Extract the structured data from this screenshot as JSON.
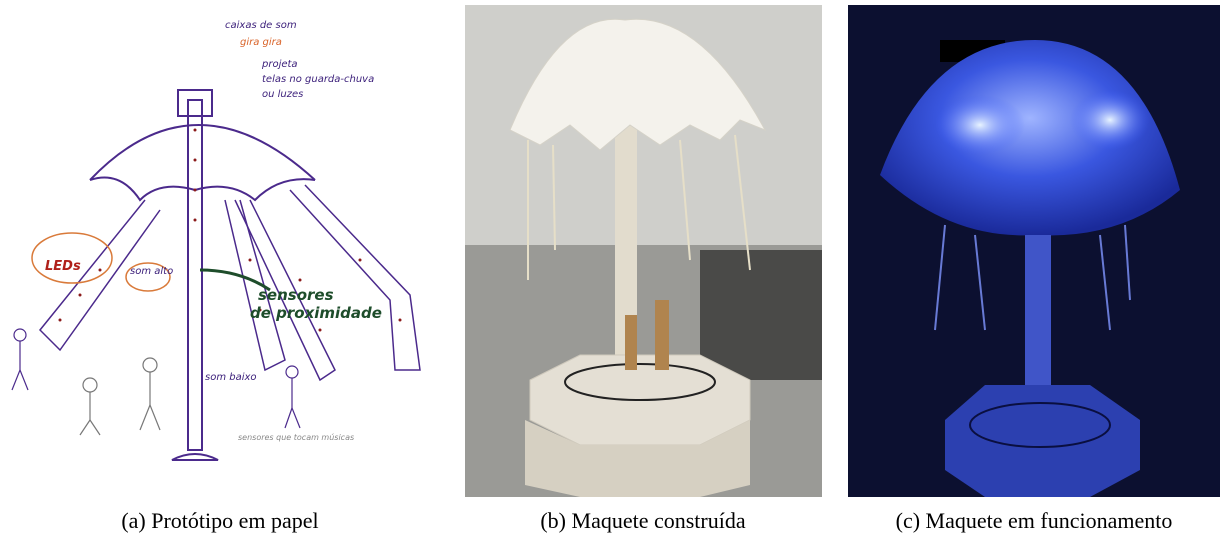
{
  "captions": [
    "(a) Protótipo em papel",
    "(b) Maquete construída",
    "(c) Maquete em funcionamento"
  ],
  "sketch_notes": [
    "caixas de som",
    "gira gira",
    "projeta",
    "telas no guarda-chuva",
    "ou luzes",
    "LEDs",
    "som alto",
    "sensores",
    "de proximidade",
    "som baixo",
    "sensores que tocam músicas"
  ]
}
